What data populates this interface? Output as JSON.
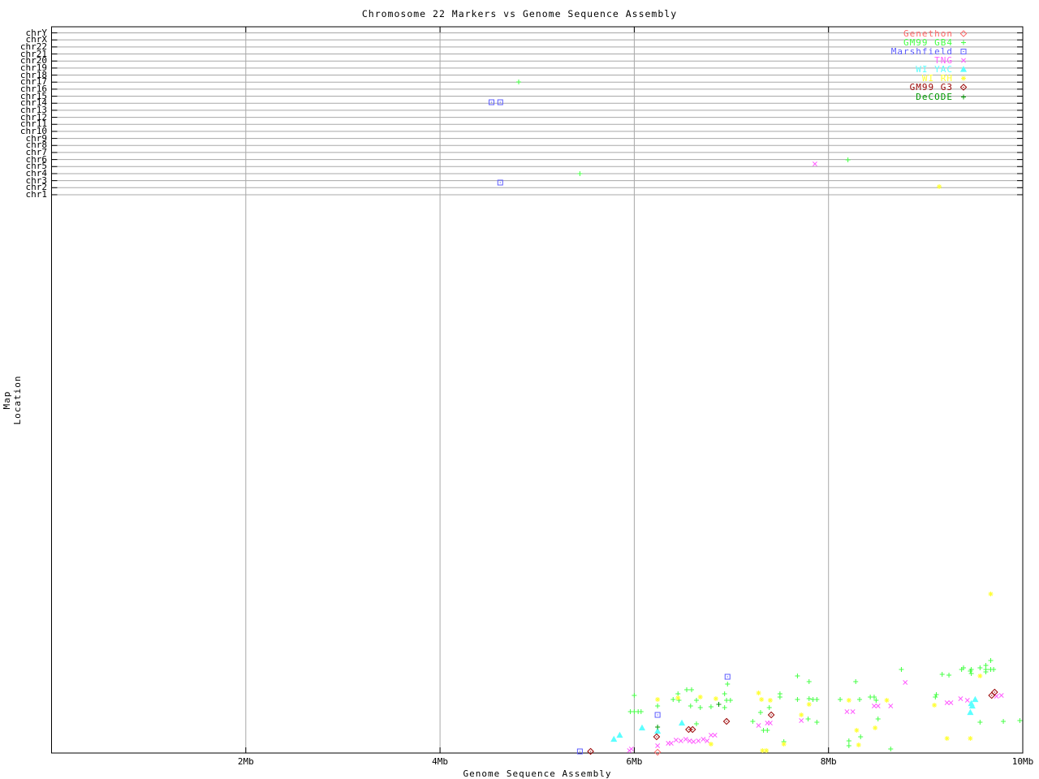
{
  "title": "Chromosome 22 Markers vs Genome Sequence Assembly",
  "axes": {
    "x": {
      "label": "Genome Sequence Assembly",
      "unit": "Mb",
      "range_mb": [
        0,
        10
      ],
      "tick_labels": [
        "2Mb",
        "4Mb",
        "6Mb",
        "8Mb",
        "10Mb"
      ],
      "tick_mb": [
        2,
        4,
        6,
        8,
        10
      ],
      "grid_mb": [
        2,
        4,
        6,
        8
      ]
    },
    "y": {
      "label": "Map Location",
      "chromosome_rows": [
        "chrY",
        "chrX",
        "chr22",
        "chr21",
        "chr20",
        "chr19",
        "chr18",
        "chr17",
        "chr16",
        "chr15",
        "chr14",
        "chr13",
        "chr12",
        "chr11",
        "chr10",
        "chr9",
        "chr8",
        "chr7",
        "chr6",
        "chr5",
        "chr4",
        "chr3",
        "chr2",
        "chr1"
      ]
    }
  },
  "colors": {
    "background": "#ffffff",
    "grid": "#a8a8a8",
    "axis": "#000000",
    "text": "#000000"
  },
  "legend_position": "top-right-inside",
  "chart_data": {
    "type": "scatter",
    "title": "Chromosome 22 Markers vs Genome Sequence Assembly",
    "xlabel": "Genome Sequence Assembly",
    "ylabel": "Map Location",
    "x_range_mb": [
      0,
      10
    ],
    "x_ticks": [
      "2Mb",
      "4Mb",
      "6Mb",
      "8Mb",
      "10Mb"
    ],
    "grid": "vertical-at-even-Mb-plus-chromosome-rows",
    "note": "y axis has no numeric scale; point y given in screen px (33=top,928=bottom). Top band rows are chromosome assignment lines chrY..chr1.",
    "series": [
      {
        "name": "Genethon",
        "marker": "diamond-open",
        "color": "#ff6666",
        "points": [
          [
            6.24,
            927
          ]
        ]
      },
      {
        "name": "GM99 GB4",
        "marker": "plus",
        "color": "#44ff44",
        "points": [
          [
            4.81,
            101
          ],
          [
            5.44,
            214
          ],
          [
            8.2,
            197
          ],
          [
            5.96,
            877
          ],
          [
            6.0,
            877
          ],
          [
            6.04,
            877
          ],
          [
            6.07,
            877
          ],
          [
            6.0,
            857
          ],
          [
            6.24,
            870
          ],
          [
            6.4,
            862
          ],
          [
            6.45,
            855
          ],
          [
            6.46,
            863
          ],
          [
            6.54,
            850
          ],
          [
            6.59,
            850
          ],
          [
            6.58,
            870
          ],
          [
            6.64,
            863
          ],
          [
            6.68,
            872
          ],
          [
            6.79,
            871
          ],
          [
            6.64,
            892
          ],
          [
            6.93,
            855
          ],
          [
            6.95,
            863
          ],
          [
            6.93,
            872
          ],
          [
            6.96,
            843
          ],
          [
            6.99,
            863
          ],
          [
            7.22,
            889
          ],
          [
            7.3,
            878
          ],
          [
            7.33,
            900
          ],
          [
            7.37,
            900
          ],
          [
            7.39,
            872
          ],
          [
            7.5,
            855
          ],
          [
            7.5,
            859
          ],
          [
            7.54,
            914
          ],
          [
            7.68,
            833
          ],
          [
            7.68,
            862
          ],
          [
            7.79,
            886
          ],
          [
            7.8,
            840
          ],
          [
            7.8,
            861
          ],
          [
            7.84,
            862
          ],
          [
            7.88,
            862
          ],
          [
            7.88,
            890
          ],
          [
            8.12,
            862
          ],
          [
            8.21,
            913
          ],
          [
            8.21,
            919
          ],
          [
            8.28,
            840
          ],
          [
            8.32,
            862
          ],
          [
            8.33,
            908
          ],
          [
            8.43,
            859
          ],
          [
            8.47,
            859
          ],
          [
            8.49,
            863
          ],
          [
            8.51,
            886
          ],
          [
            8.64,
            923
          ],
          [
            8.75,
            825
          ],
          [
            9.1,
            859
          ],
          [
            9.11,
            856
          ],
          [
            9.17,
            831
          ],
          [
            9.24,
            832
          ],
          [
            9.37,
            825
          ],
          [
            9.39,
            823
          ],
          [
            9.46,
            827
          ],
          [
            9.47,
            825
          ],
          [
            9.47,
            830
          ],
          [
            9.56,
            823
          ],
          [
            9.56,
            890
          ],
          [
            9.62,
            820
          ],
          [
            9.62,
            825
          ],
          [
            9.62,
            828
          ],
          [
            9.67,
            814
          ],
          [
            9.67,
            825
          ],
          [
            9.7,
            825
          ],
          [
            9.8,
            889
          ],
          [
            9.97,
            888
          ]
        ]
      },
      {
        "name": "Marshfield",
        "marker": "square-dot",
        "color": "#5c5cff",
        "points": [
          [
            4.53,
            126
          ],
          [
            4.62,
            126
          ],
          [
            4.62,
            225
          ],
          [
            5.44,
            926
          ],
          [
            6.24,
            881
          ],
          [
            6.96,
            834
          ]
        ]
      },
      {
        "name": "TNG",
        "marker": "cross",
        "color": "#ff5cff",
        "points": [
          [
            7.86,
            202
          ],
          [
            5.95,
            925
          ],
          [
            5.97,
            923
          ],
          [
            6.24,
            919
          ],
          [
            6.35,
            916
          ],
          [
            6.38,
            916
          ],
          [
            6.43,
            912
          ],
          [
            6.48,
            913
          ],
          [
            6.53,
            911
          ],
          [
            6.57,
            913
          ],
          [
            6.61,
            914
          ],
          [
            6.66,
            913
          ],
          [
            6.71,
            911
          ],
          [
            6.75,
            913
          ],
          [
            6.79,
            906
          ],
          [
            6.83,
            906
          ],
          [
            7.28,
            894
          ],
          [
            7.37,
            891
          ],
          [
            7.4,
            891
          ],
          [
            7.72,
            888
          ],
          [
            8.19,
            877
          ],
          [
            8.25,
            877
          ],
          [
            8.47,
            870
          ],
          [
            8.51,
            870
          ],
          [
            8.64,
            870
          ],
          [
            8.79,
            841
          ],
          [
            9.22,
            866
          ],
          [
            9.26,
            866
          ],
          [
            9.36,
            861
          ],
          [
            9.43,
            863
          ],
          [
            9.73,
            858
          ],
          [
            9.78,
            857
          ]
        ]
      },
      {
        "name": "WI YAC",
        "marker": "triangle",
        "color": "#5cffff",
        "points": [
          [
            5.79,
            911
          ],
          [
            5.85,
            906
          ],
          [
            6.08,
            897
          ],
          [
            6.24,
            901
          ],
          [
            6.49,
            891
          ],
          [
            9.46,
            878
          ],
          [
            9.47,
            867
          ],
          [
            9.48,
            870
          ],
          [
            9.51,
            862
          ]
        ]
      },
      {
        "name": "WI RH",
        "marker": "asterisk",
        "color": "#ffff33",
        "points": [
          [
            9.14,
            230
          ],
          [
            9.67,
            732
          ],
          [
            6.24,
            862
          ],
          [
            6.45,
            860
          ],
          [
            6.68,
            859
          ],
          [
            6.84,
            861
          ],
          [
            6.79,
            917
          ],
          [
            7.28,
            854
          ],
          [
            7.31,
            862
          ],
          [
            7.4,
            863
          ],
          [
            7.32,
            925
          ],
          [
            7.36,
            925
          ],
          [
            7.54,
            917
          ],
          [
            7.72,
            881
          ],
          [
            7.8,
            868
          ],
          [
            8.21,
            863
          ],
          [
            8.29,
            900
          ],
          [
            8.31,
            918
          ],
          [
            8.48,
            897
          ],
          [
            8.6,
            863
          ],
          [
            9.09,
            869
          ],
          [
            9.22,
            910
          ],
          [
            9.46,
            910
          ],
          [
            9.56,
            833
          ]
        ]
      },
      {
        "name": "GM99 G3",
        "marker": "diamond-dot",
        "color": "#990000",
        "points": [
          [
            5.55,
            926
          ],
          [
            6.23,
            908
          ],
          [
            6.56,
            899
          ],
          [
            6.6,
            899
          ],
          [
            6.95,
            889
          ],
          [
            7.41,
            881
          ],
          [
            9.68,
            857
          ],
          [
            9.71,
            853
          ]
        ]
      },
      {
        "name": "DeCODE",
        "marker": "plus",
        "color": "#009900",
        "points": [
          [
            6.24,
            896
          ],
          [
            6.87,
            868
          ]
        ]
      }
    ]
  }
}
